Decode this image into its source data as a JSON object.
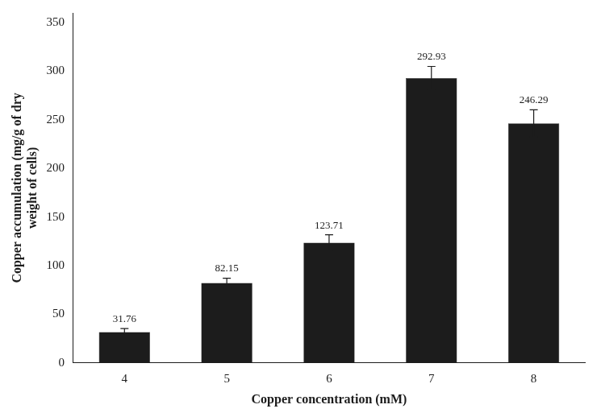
{
  "chart_data": {
    "type": "bar",
    "categories": [
      "4",
      "5",
      "6",
      "7",
      "8"
    ],
    "values": [
      31.76,
      82.15,
      123.71,
      292.93,
      246.29
    ],
    "errors": [
      3.5,
      5.0,
      8.0,
      12.0,
      14.0
    ],
    "color": "#1c1c1c",
    "xlabel": "Copper concentration (mM)",
    "ylabel": "Copper accumulation (mg/g of dry\nweight of cells)",
    "ylim": [
      0,
      360
    ],
    "yticks": [
      0,
      50,
      100,
      150,
      200,
      250,
      300,
      350
    ],
    "grid": false,
    "data_labels": true
  }
}
